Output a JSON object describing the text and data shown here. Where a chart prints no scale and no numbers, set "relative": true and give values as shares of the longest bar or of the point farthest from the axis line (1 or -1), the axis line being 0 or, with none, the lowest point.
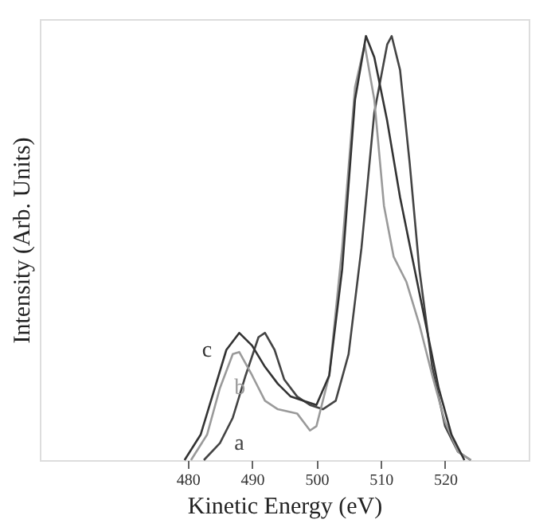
{
  "chart_data": {
    "type": "line",
    "xlabel": "Kinetic Energy (eV)",
    "ylabel": "Intensity (Arb. Units)",
    "relative": true,
    "xlim": [
      457,
      533
    ],
    "xticks": [
      480,
      490,
      500,
      510,
      520
    ],
    "tick_labels": "x",
    "grid": false,
    "legend": false,
    "marker": "none",
    "line_style": "solid",
    "series": [
      {
        "name": "a",
        "color": "#444444",
        "x": [
          482.5,
          485,
          487,
          489,
          491,
          492,
          493.5,
          495,
          497,
          499,
          501,
          503,
          505,
          507,
          509,
          511,
          511.7,
          513,
          514.5,
          516,
          518,
          520,
          522,
          524
        ],
        "values": [
          0,
          0.04,
          0.1,
          0.2,
          0.29,
          0.3,
          0.26,
          0.19,
          0.15,
          0.13,
          0.12,
          0.14,
          0.25,
          0.5,
          0.82,
          0.98,
          1.0,
          0.92,
          0.7,
          0.45,
          0.22,
          0.08,
          0.02,
          0
        ]
      },
      {
        "name": "b",
        "color": "#9a9a9a",
        "x": [
          480.5,
          483,
          485,
          487,
          488,
          490,
          492,
          494,
          497,
          499,
          500,
          502,
          504,
          506,
          507.5,
          509,
          510.5,
          512,
          514,
          516,
          518,
          520,
          522,
          524
        ],
        "values": [
          0,
          0.06,
          0.17,
          0.25,
          0.255,
          0.2,
          0.14,
          0.12,
          0.11,
          0.07,
          0.08,
          0.2,
          0.5,
          0.88,
          0.98,
          0.85,
          0.6,
          0.48,
          0.42,
          0.32,
          0.2,
          0.09,
          0.02,
          0
        ]
      },
      {
        "name": "c",
        "color": "#333333",
        "x": [
          479.5,
          482,
          484,
          486,
          488,
          490,
          492,
          494,
          496,
          498,
          500,
          502,
          504,
          506,
          507.7,
          509,
          511,
          513,
          515,
          517,
          519,
          521,
          523
        ],
        "values": [
          0,
          0.06,
          0.16,
          0.26,
          0.3,
          0.27,
          0.22,
          0.18,
          0.15,
          0.14,
          0.13,
          0.2,
          0.45,
          0.85,
          1.0,
          0.95,
          0.8,
          0.62,
          0.47,
          0.32,
          0.17,
          0.06,
          0
        ]
      }
    ]
  }
}
